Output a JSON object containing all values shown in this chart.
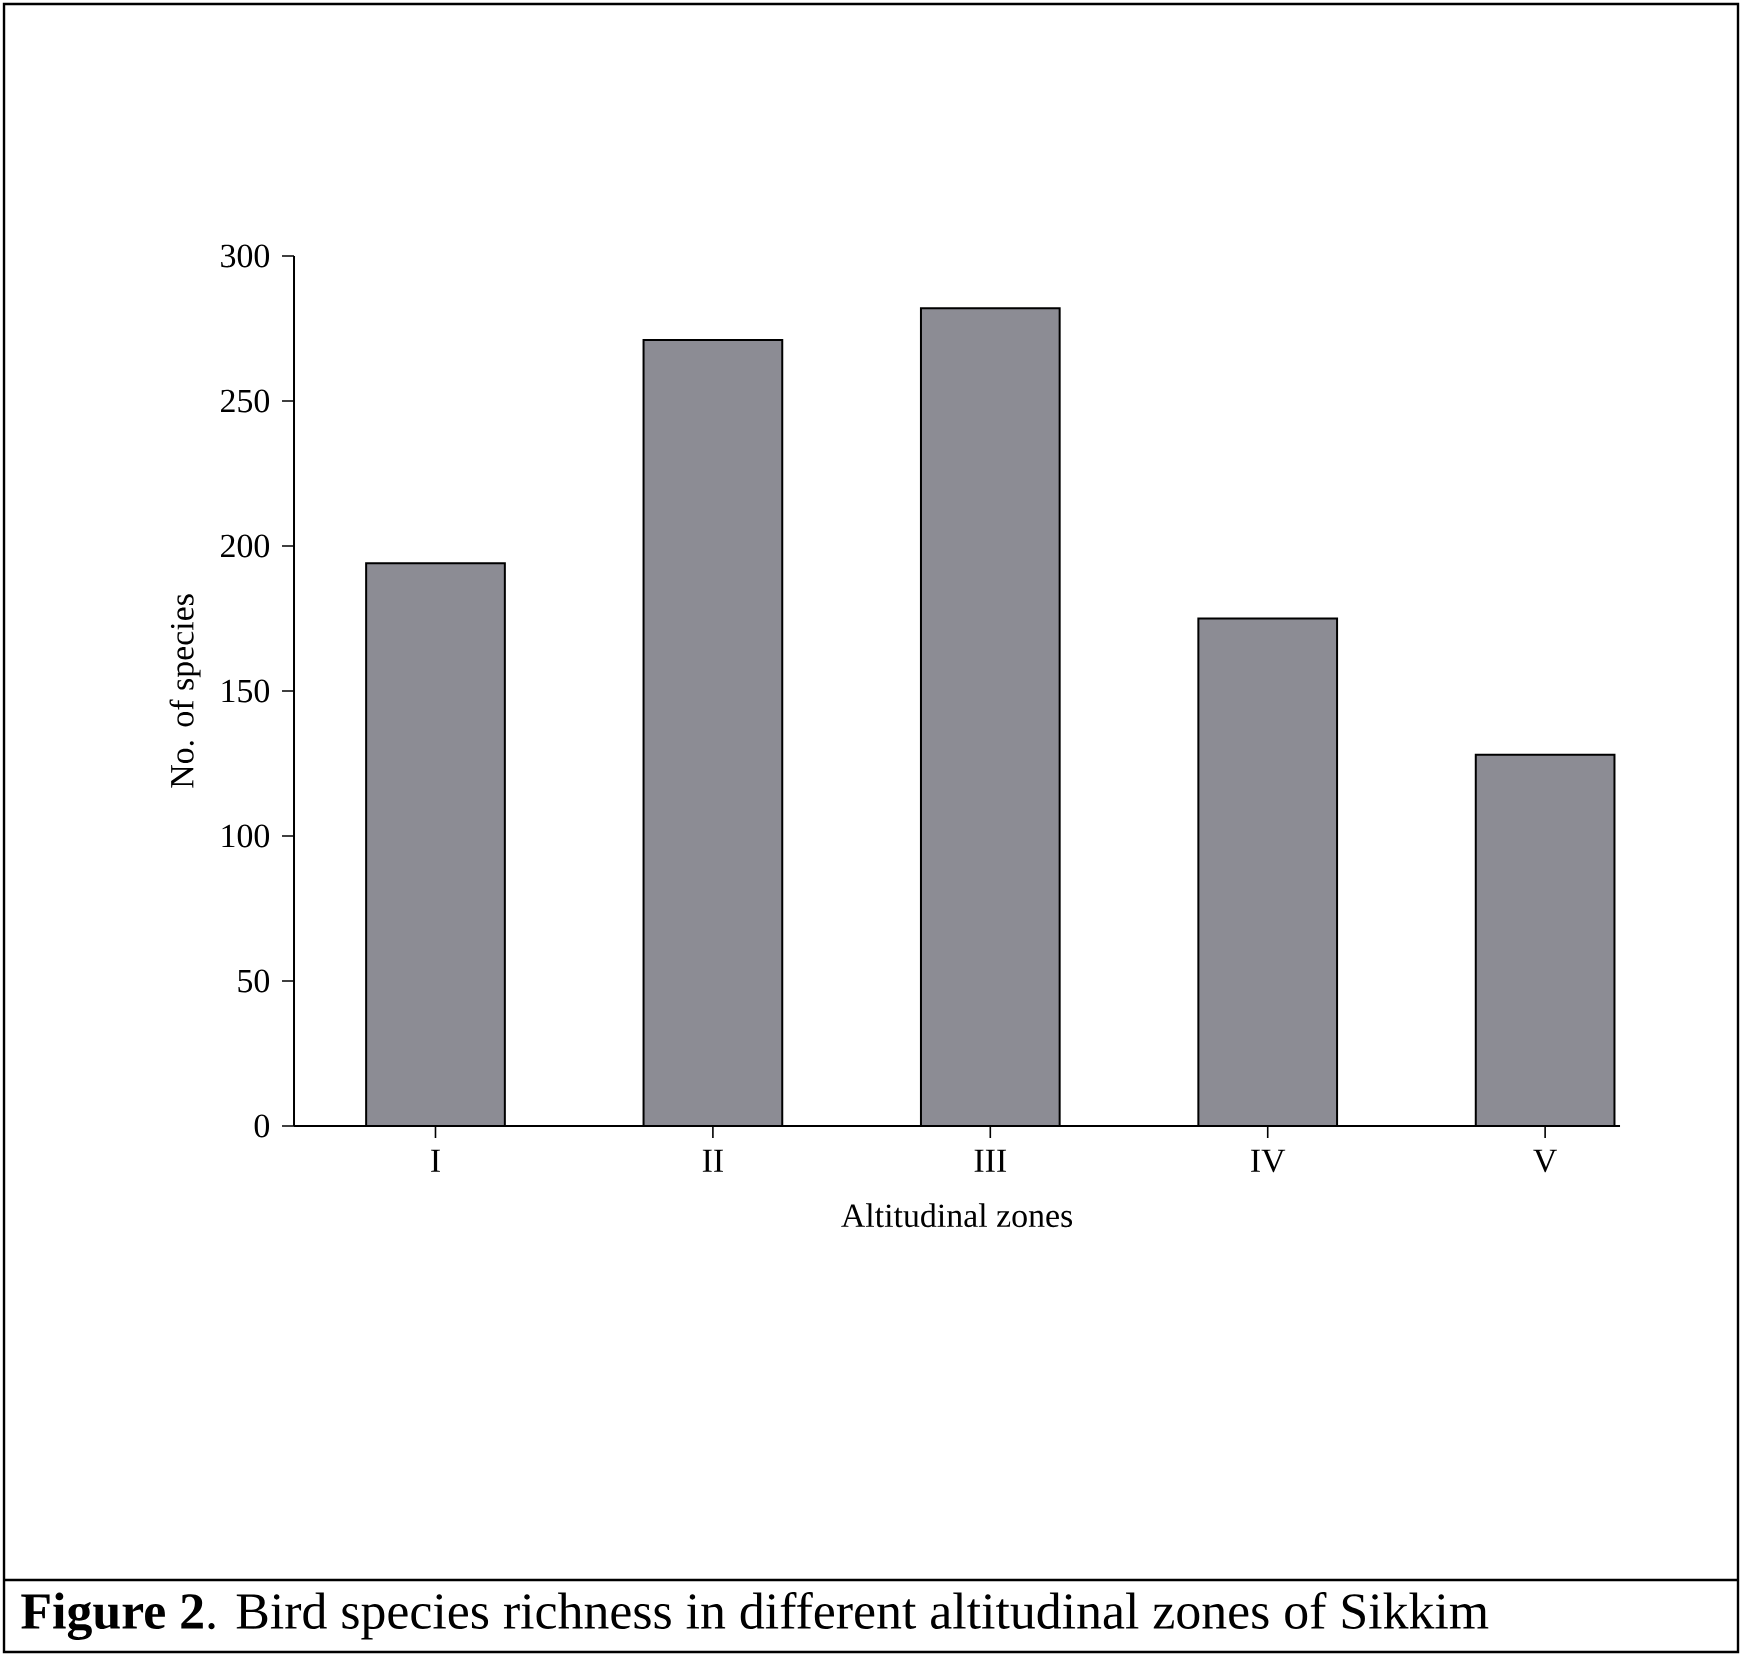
{
  "chart_data": {
    "type": "bar",
    "xlabel": "Altitudinal zones",
    "ylabel": "No. of species",
    "categories": [
      "I",
      "II",
      "III",
      "IV",
      "V"
    ],
    "values": [
      194,
      271,
      282,
      175,
      128
    ],
    "color": "#8c8c94",
    "ylim": [
      0,
      300
    ],
    "yticks": [
      0,
      50,
      100,
      150,
      200,
      250,
      300
    ],
    "grid": false,
    "annotations": [
      "**Figure 2**. Bird species richness in different altitudinal zones of Sikkim"
    ]
  }
}
